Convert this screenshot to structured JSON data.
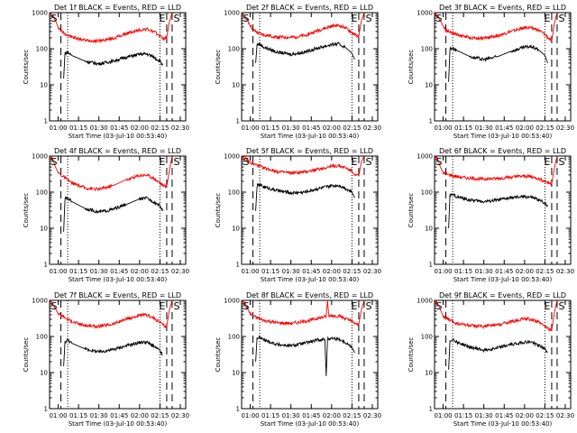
{
  "figure": {
    "background": "#ffffff",
    "events_color": "#000000",
    "lld_color": "#ff0000",
    "y_scale": "log",
    "grid": false,
    "ylim": [
      1,
      1000
    ],
    "xlim": [
      "00:53:40",
      "02:34"
    ],
    "x_ticks": [
      "01:00",
      "01:15",
      "01:30",
      "01:45",
      "02:00",
      "02:15",
      "02:30"
    ],
    "y_ticks": [
      "1",
      "10",
      "100",
      "1000"
    ],
    "ylabel": "Counts/sec",
    "xlabel": "Start Time (03-Jul-10 00:53:40)",
    "markers": [
      "S",
      "E",
      "S"
    ]
  },
  "chart_data": [
    {
      "type": "line",
      "title": "Det 1f BLACK = Events, RED = LLD",
      "xlabel": "Start Time (03-Jul-10 00:53:40)",
      "ylabel": "Counts/sec",
      "y_scale": "log",
      "ylim": [
        1,
        1000
      ],
      "x_tick_labels": [
        "01:00",
        "01:15",
        "01:30",
        "01:45",
        "02:00",
        "02:15",
        "02:30"
      ],
      "annotations": [
        "S",
        "E",
        "S"
      ],
      "vlines_dashed": [
        "01:02",
        "02:20",
        "02:24"
      ],
      "vlines_dotted": [
        "01:07",
        "02:15"
      ],
      "series": [
        {
          "color": "#ff0000",
          "x": [
            "00:54",
            "00:56",
            "00:58",
            "01:00",
            "01:02",
            "01:05",
            "01:10",
            "01:20",
            "01:30",
            "01:40",
            "01:50",
            "02:00",
            "02:05",
            "02:10",
            "02:15",
            "02:18",
            "02:20",
            "02:22",
            "02:24"
          ],
          "values": [
            1000,
            800,
            600,
            400,
            320,
            260,
            210,
            170,
            165,
            190,
            260,
            330,
            350,
            300,
            230,
            190,
            200,
            550,
            1000
          ]
        },
        {
          "color": "#000000",
          "x": [
            "01:04",
            "01:05",
            "01:07",
            "01:10",
            "01:20",
            "01:30",
            "01:40",
            "01:50",
            "02:00",
            "02:05",
            "02:10",
            "02:15",
            "02:17"
          ],
          "values": [
            15,
            75,
            80,
            65,
            45,
            38,
            45,
            58,
            70,
            72,
            60,
            45,
            35
          ]
        }
      ]
    },
    {
      "type": "line",
      "title": "Det 2f BLACK = Events, RED = LLD",
      "xlabel": "Start Time (03-Jul-10 00:53:40)",
      "ylabel": "Counts/sec",
      "y_scale": "log",
      "ylim": [
        1,
        1000
      ],
      "x_tick_labels": [
        "01:00",
        "01:15",
        "01:30",
        "01:45",
        "02:00",
        "02:15",
        "02:30"
      ],
      "annotations": [
        "S",
        "E",
        "S"
      ],
      "vlines_dashed": [
        "01:02",
        "02:20",
        "02:24"
      ],
      "vlines_dotted": [
        "01:07",
        "02:15"
      ],
      "series": [
        {
          "color": "#ff0000",
          "x": [
            "00:54",
            "00:56",
            "00:58",
            "01:00",
            "01:02",
            "01:05",
            "01:10",
            "01:20",
            "01:30",
            "01:40",
            "01:50",
            "02:00",
            "02:05",
            "02:10",
            "02:15",
            "02:18",
            "02:20",
            "02:22",
            "02:24"
          ],
          "values": [
            1000,
            800,
            600,
            450,
            340,
            280,
            240,
            210,
            205,
            230,
            320,
            420,
            440,
            380,
            280,
            230,
            220,
            600,
            1000
          ]
        },
        {
          "color": "#000000",
          "x": [
            "01:04",
            "01:05",
            "01:07",
            "01:10",
            "01:20",
            "01:30",
            "01:40",
            "01:50",
            "02:00",
            "02:05",
            "02:10",
            "02:15",
            "02:17"
          ],
          "values": [
            40,
            130,
            135,
            110,
            80,
            70,
            80,
            105,
            130,
            135,
            110,
            75,
            50
          ]
        }
      ]
    },
    {
      "type": "line",
      "title": "Det 3f BLACK = Events, RED = LLD",
      "xlabel": "Start Time (03-Jul-10 00:53:40)",
      "ylabel": "Counts/sec",
      "y_scale": "log",
      "ylim": [
        1,
        1000
      ],
      "x_tick_labels": [
        "01:00",
        "01:15",
        "01:30",
        "01:45",
        "02:00",
        "02:15",
        "02:30"
      ],
      "annotations": [
        "S",
        "E",
        "S"
      ],
      "vlines_dashed": [
        "01:02",
        "02:20",
        "02:24"
      ],
      "vlines_dotted": [
        "01:07",
        "02:15"
      ],
      "series": [
        {
          "color": "#ff0000",
          "x": [
            "00:54",
            "00:56",
            "00:58",
            "01:00",
            "01:02",
            "01:05",
            "01:10",
            "01:20",
            "01:30",
            "01:40",
            "01:50",
            "02:00",
            "02:05",
            "02:10",
            "02:15",
            "02:18",
            "02:20",
            "02:22",
            "02:24"
          ],
          "values": [
            1000,
            800,
            600,
            420,
            330,
            290,
            250,
            200,
            195,
            230,
            300,
            380,
            390,
            330,
            250,
            190,
            160,
            500,
            1000
          ]
        },
        {
          "color": "#000000",
          "x": [
            "01:04",
            "01:05",
            "01:07",
            "01:10",
            "01:20",
            "01:30",
            "01:40",
            "01:50",
            "02:00",
            "02:05",
            "02:10",
            "02:15",
            "02:17"
          ],
          "values": [
            12,
            100,
            105,
            90,
            60,
            50,
            60,
            85,
            110,
            115,
            95,
            65,
            40
          ]
        }
      ]
    },
    {
      "type": "line",
      "title": "Det 4f BLACK = Events, RED = LLD",
      "xlabel": "Start Time (03-Jul-10 00:53:40)",
      "ylabel": "Counts/sec",
      "y_scale": "log",
      "ylim": [
        1,
        1000
      ],
      "x_tick_labels": [
        "01:00",
        "01:15",
        "01:30",
        "01:45",
        "02:00",
        "02:15",
        "02:30"
      ],
      "annotations": [
        "S",
        "E",
        "S"
      ],
      "vlines_dashed": [
        "01:02",
        "02:20",
        "02:24"
      ],
      "vlines_dotted": [
        "01:07",
        "02:15"
      ],
      "series": [
        {
          "color": "#ff0000",
          "x": [
            "00:54",
            "00:56",
            "00:58",
            "01:00",
            "01:02",
            "01:05",
            "01:10",
            "01:20",
            "01:30",
            "01:40",
            "01:50",
            "02:00",
            "02:05",
            "02:10",
            "02:15",
            "02:18",
            "02:20",
            "02:22",
            "02:24"
          ],
          "values": [
            1000,
            800,
            500,
            350,
            300,
            250,
            180,
            130,
            120,
            150,
            220,
            290,
            300,
            250,
            180,
            150,
            140,
            400,
            1000
          ]
        },
        {
          "color": "#000000",
          "x": [
            "01:04",
            "01:05",
            "01:07",
            "01:10",
            "01:20",
            "01:30",
            "01:40",
            "01:50",
            "02:00",
            "02:05",
            "02:10",
            "02:15",
            "02:17"
          ],
          "values": [
            8,
            65,
            70,
            55,
            35,
            28,
            33,
            45,
            65,
            68,
            55,
            42,
            30
          ]
        }
      ]
    },
    {
      "type": "line",
      "title": "Det 5f BLACK = Events, RED = LLD",
      "xlabel": "Start Time (03-Jul-10 00:53:40)",
      "ylabel": "Counts/sec",
      "y_scale": "log",
      "ylim": [
        1,
        1000
      ],
      "x_tick_labels": [
        "01:00",
        "01:15",
        "01:30",
        "01:45",
        "02:00",
        "02:15",
        "02:30"
      ],
      "annotations": [
        "S",
        "E",
        "S"
      ],
      "vlines_dashed": [
        "01:02",
        "02:20",
        "02:24"
      ],
      "vlines_dotted": [
        "01:07",
        "02:15"
      ],
      "series": [
        {
          "color": "#ff0000",
          "x": [
            "00:54",
            "00:56",
            "00:58",
            "01:00",
            "01:02",
            "01:05",
            "01:10",
            "01:20",
            "01:30",
            "01:40",
            "01:50",
            "02:00",
            "02:05",
            "02:10",
            "02:15",
            "02:18",
            "02:20",
            "02:22",
            "02:24"
          ],
          "values": [
            1000,
            900,
            750,
            650,
            600,
            560,
            470,
            370,
            340,
            360,
            430,
            520,
            540,
            480,
            380,
            300,
            280,
            700,
            1000
          ]
        },
        {
          "color": "#000000",
          "x": [
            "01:04",
            "01:05",
            "01:07",
            "01:10",
            "01:20",
            "01:30",
            "01:40",
            "01:50",
            "02:00",
            "02:05",
            "02:10",
            "02:15",
            "02:17"
          ],
          "values": [
            30,
            150,
            160,
            140,
            110,
            95,
            100,
            125,
            150,
            155,
            130,
            100,
            70
          ]
        }
      ]
    },
    {
      "type": "line",
      "title": "Det 6f BLACK = Events, RED = LLD",
      "xlabel": "Start Time (03-Jul-10 00:53:40)",
      "ylabel": "Counts/sec",
      "y_scale": "log",
      "ylim": [
        1,
        1000
      ],
      "x_tick_labels": [
        "01:00",
        "01:15",
        "01:30",
        "01:45",
        "02:00",
        "02:15",
        "02:30"
      ],
      "annotations": [
        "S",
        "E",
        "S"
      ],
      "vlines_dashed": [
        "01:02",
        "02:20",
        "02:24"
      ],
      "vlines_dotted": [
        "01:07",
        "02:15"
      ],
      "series": [
        {
          "color": "#ff0000",
          "x": [
            "00:54",
            "00:56",
            "00:58",
            "01:00",
            "01:02",
            "01:05",
            "01:10",
            "01:20",
            "01:30",
            "01:40",
            "01:50",
            "02:00",
            "02:05",
            "02:10",
            "02:15",
            "02:18",
            "02:20",
            "02:22",
            "02:24"
          ],
          "values": [
            1000,
            800,
            500,
            350,
            320,
            300,
            270,
            240,
            230,
            240,
            260,
            280,
            270,
            240,
            200,
            180,
            170,
            450,
            1000
          ]
        },
        {
          "color": "#000000",
          "x": [
            "01:04",
            "01:05",
            "01:07",
            "01:10",
            "01:20",
            "01:30",
            "01:40",
            "01:50",
            "02:00",
            "02:05",
            "02:10",
            "02:15",
            "02:17"
          ],
          "values": [
            10,
            80,
            85,
            75,
            60,
            55,
            60,
            70,
            75,
            72,
            62,
            50,
            40
          ]
        }
      ]
    },
    {
      "type": "line",
      "title": "Det 7f BLACK = Events, RED = LLD",
      "xlabel": "Start Time (03-Jul-10 00:53:40)",
      "ylabel": "Counts/sec",
      "y_scale": "log",
      "ylim": [
        1,
        1000
      ],
      "x_tick_labels": [
        "01:00",
        "01:15",
        "01:30",
        "01:45",
        "02:00",
        "02:15",
        "02:30"
      ],
      "annotations": [
        "S",
        "E",
        "S"
      ],
      "vlines_dashed": [
        "01:02",
        "02:20",
        "02:24"
      ],
      "vlines_dotted": [
        "01:07",
        "02:15"
      ],
      "series": [
        {
          "color": "#ff0000",
          "x": [
            "00:54",
            "00:56",
            "00:58",
            "01:00",
            "01:02",
            "01:05",
            "01:10",
            "01:20",
            "01:30",
            "01:40",
            "01:50",
            "02:00",
            "02:05",
            "02:10",
            "02:15",
            "02:18",
            "02:20",
            "02:22",
            "02:24"
          ],
          "values": [
            1000,
            800,
            600,
            420,
            400,
            330,
            260,
            200,
            190,
            220,
            300,
            380,
            390,
            330,
            250,
            200,
            190,
            550,
            1000
          ]
        },
        {
          "color": "#000000",
          "x": [
            "01:04",
            "01:05",
            "01:07",
            "01:10",
            "01:20",
            "01:30",
            "01:40",
            "01:50",
            "02:00",
            "02:05",
            "02:10",
            "02:15",
            "02:17"
          ],
          "values": [
            15,
            70,
            80,
            65,
            45,
            37,
            43,
            55,
            68,
            70,
            55,
            40,
            30
          ]
        }
      ]
    },
    {
      "type": "line",
      "title": "Det 8f BLACK = Events, RED = LLD",
      "xlabel": "Start Time (03-Jul-10 00:53:40)",
      "ylabel": "Counts/sec",
      "y_scale": "log",
      "ylim": [
        1,
        1000
      ],
      "x_tick_labels": [
        "01:00",
        "01:15",
        "01:30",
        "01:45",
        "02:00",
        "02:15",
        "02:30"
      ],
      "annotations": [
        "S",
        "E",
        "S"
      ],
      "vlines_dashed": [
        "01:02",
        "02:20",
        "02:24"
      ],
      "vlines_dotted": [
        "01:07",
        "02:15"
      ],
      "series": [
        {
          "color": "#ff0000",
          "x": [
            "00:54",
            "00:56",
            "00:58",
            "01:00",
            "01:02",
            "01:05",
            "01:10",
            "01:20",
            "01:30",
            "01:40",
            "01:50",
            "01:56",
            "01:57",
            "01:58",
            "02:00",
            "02:05",
            "02:10",
            "02:15",
            "02:18",
            "02:20",
            "02:22",
            "02:24"
          ],
          "values": [
            1000,
            800,
            600,
            420,
            380,
            330,
            280,
            240,
            230,
            260,
            320,
            360,
            1000,
            360,
            380,
            370,
            320,
            260,
            220,
            210,
            550,
            1000
          ]
        },
        {
          "color": "#000000",
          "x": [
            "01:04",
            "01:05",
            "01:07",
            "01:10",
            "01:20",
            "01:30",
            "01:40",
            "01:50",
            "01:55",
            "01:56",
            "01:57",
            "02:00",
            "02:05",
            "02:10",
            "02:15",
            "02:17"
          ],
          "values": [
            20,
            90,
            95,
            80,
            60,
            55,
            65,
            80,
            85,
            8,
            85,
            90,
            85,
            70,
            50,
            35
          ]
        }
      ]
    },
    {
      "type": "line",
      "title": "Det 9f BLACK = Events, RED = LLD",
      "xlabel": "Start Time (03-Jul-10 00:53:40)",
      "ylabel": "Counts/sec",
      "y_scale": "log",
      "ylim": [
        1,
        1000
      ],
      "x_tick_labels": [
        "01:00",
        "01:15",
        "01:30",
        "01:45",
        "02:00",
        "02:15",
        "02:30"
      ],
      "annotations": [
        "S",
        "E",
        "S"
      ],
      "vlines_dashed": [
        "01:02",
        "02:20",
        "02:24"
      ],
      "vlines_dotted": [
        "01:07",
        "02:15"
      ],
      "series": [
        {
          "color": "#ff0000",
          "x": [
            "00:54",
            "00:56",
            "00:58",
            "01:00",
            "01:02",
            "01:05",
            "01:10",
            "01:20",
            "01:30",
            "01:40",
            "01:50",
            "02:00",
            "02:05",
            "02:10",
            "02:15",
            "02:18",
            "02:20",
            "02:22",
            "02:24"
          ],
          "values": [
            1000,
            800,
            550,
            370,
            320,
            280,
            230,
            200,
            190,
            210,
            260,
            310,
            300,
            250,
            190,
            160,
            150,
            450,
            1000
          ]
        },
        {
          "color": "#000000",
          "x": [
            "01:04",
            "01:05",
            "01:07",
            "01:10",
            "01:20",
            "01:30",
            "01:40",
            "01:50",
            "02:00",
            "02:05",
            "02:10",
            "02:15",
            "02:17"
          ],
          "values": [
            12,
            75,
            85,
            70,
            50,
            42,
            48,
            60,
            70,
            70,
            58,
            45,
            35
          ]
        }
      ]
    }
  ]
}
